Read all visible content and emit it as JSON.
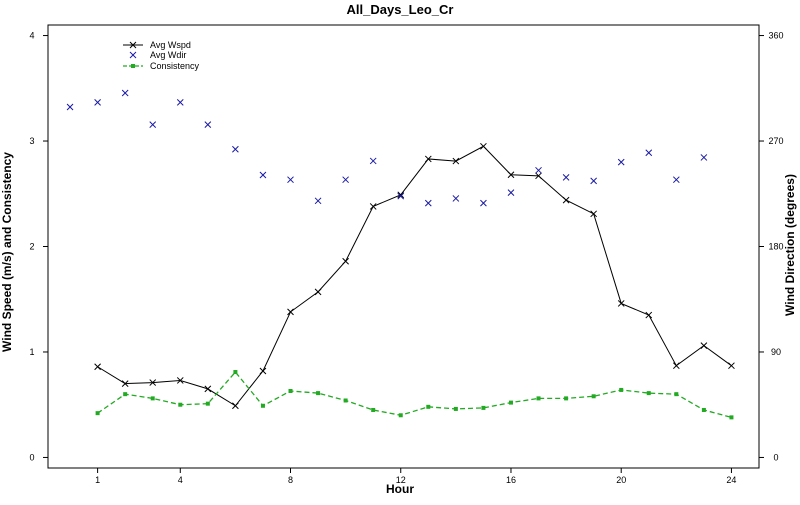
{
  "chart_data": {
    "type": "line",
    "title": "All_Days_Leo_Cr",
    "xlabel": "Hour",
    "ylabel": "Wind Speed (m/s) and Consistency",
    "y2label": "Wind Direction (degrees)",
    "xlim": [
      -0.8,
      25
    ],
    "ylim": [
      -0.1,
      4.1
    ],
    "y2lim": [
      -9,
      369
    ],
    "xticks": [
      1,
      4,
      8,
      12,
      16,
      20,
      24
    ],
    "yticks": [
      0,
      1,
      2,
      3,
      4
    ],
    "y2ticks": [
      0,
      90,
      180,
      270,
      360
    ],
    "legend_position": "top-left",
    "grid": false,
    "series": [
      {
        "name": "Avg Wspd",
        "axis": "left",
        "style": "line-x",
        "color": "#000000",
        "points": [
          [
            1,
            0.86
          ],
          [
            2,
            0.7
          ],
          [
            3,
            0.71
          ],
          [
            4,
            0.73
          ],
          [
            5,
            0.65
          ],
          [
            6,
            0.49
          ],
          [
            7,
            0.82
          ],
          [
            8,
            1.38
          ],
          [
            9,
            1.57
          ],
          [
            10,
            1.86
          ],
          [
            11,
            2.38
          ],
          [
            12,
            2.49
          ],
          [
            13,
            2.83
          ],
          [
            14,
            2.81
          ],
          [
            15,
            2.95
          ],
          [
            16,
            2.68
          ],
          [
            17,
            2.67
          ],
          [
            18,
            2.44
          ],
          [
            19,
            2.31
          ],
          [
            20,
            1.46
          ],
          [
            21,
            1.35
          ],
          [
            22,
            0.87
          ],
          [
            23,
            1.06
          ],
          [
            24,
            0.87
          ]
        ]
      },
      {
        "name": "Avg Wdir",
        "axis": "right",
        "style": "x-markers",
        "color": "#1a1aa6",
        "points": [
          [
            0,
            299
          ],
          [
            1,
            303
          ],
          [
            2,
            311
          ],
          [
            3,
            284
          ],
          [
            4,
            303
          ],
          [
            5,
            284
          ],
          [
            6,
            263
          ],
          [
            7,
            241
          ],
          [
            8,
            237
          ],
          [
            9,
            219
          ],
          [
            10,
            237
          ],
          [
            11,
            253
          ],
          [
            12,
            223
          ],
          [
            13,
            217
          ],
          [
            14,
            221
          ],
          [
            15,
            217
          ],
          [
            16,
            226
          ],
          [
            17,
            245
          ],
          [
            18,
            239
          ],
          [
            19,
            236
          ],
          [
            20,
            252
          ],
          [
            21,
            260
          ],
          [
            22,
            237
          ],
          [
            23,
            256
          ]
        ]
      },
      {
        "name": "Consistency",
        "axis": "left",
        "style": "dashed-squares",
        "color": "#22aa22",
        "points": [
          [
            1,
            0.42
          ],
          [
            2,
            0.6
          ],
          [
            3,
            0.56
          ],
          [
            4,
            0.5
          ],
          [
            5,
            0.51
          ],
          [
            6,
            0.81
          ],
          [
            7,
            0.49
          ],
          [
            8,
            0.63
          ],
          [
            9,
            0.61
          ],
          [
            10,
            0.54
          ],
          [
            11,
            0.45
          ],
          [
            12,
            0.4
          ],
          [
            13,
            0.48
          ],
          [
            14,
            0.46
          ],
          [
            15,
            0.47
          ],
          [
            16,
            0.52
          ],
          [
            17,
            0.56
          ],
          [
            18,
            0.56
          ],
          [
            19,
            0.58
          ],
          [
            20,
            0.64
          ],
          [
            21,
            0.61
          ],
          [
            22,
            0.6
          ],
          [
            23,
            0.45
          ],
          [
            24,
            0.38
          ]
        ]
      }
    ]
  }
}
